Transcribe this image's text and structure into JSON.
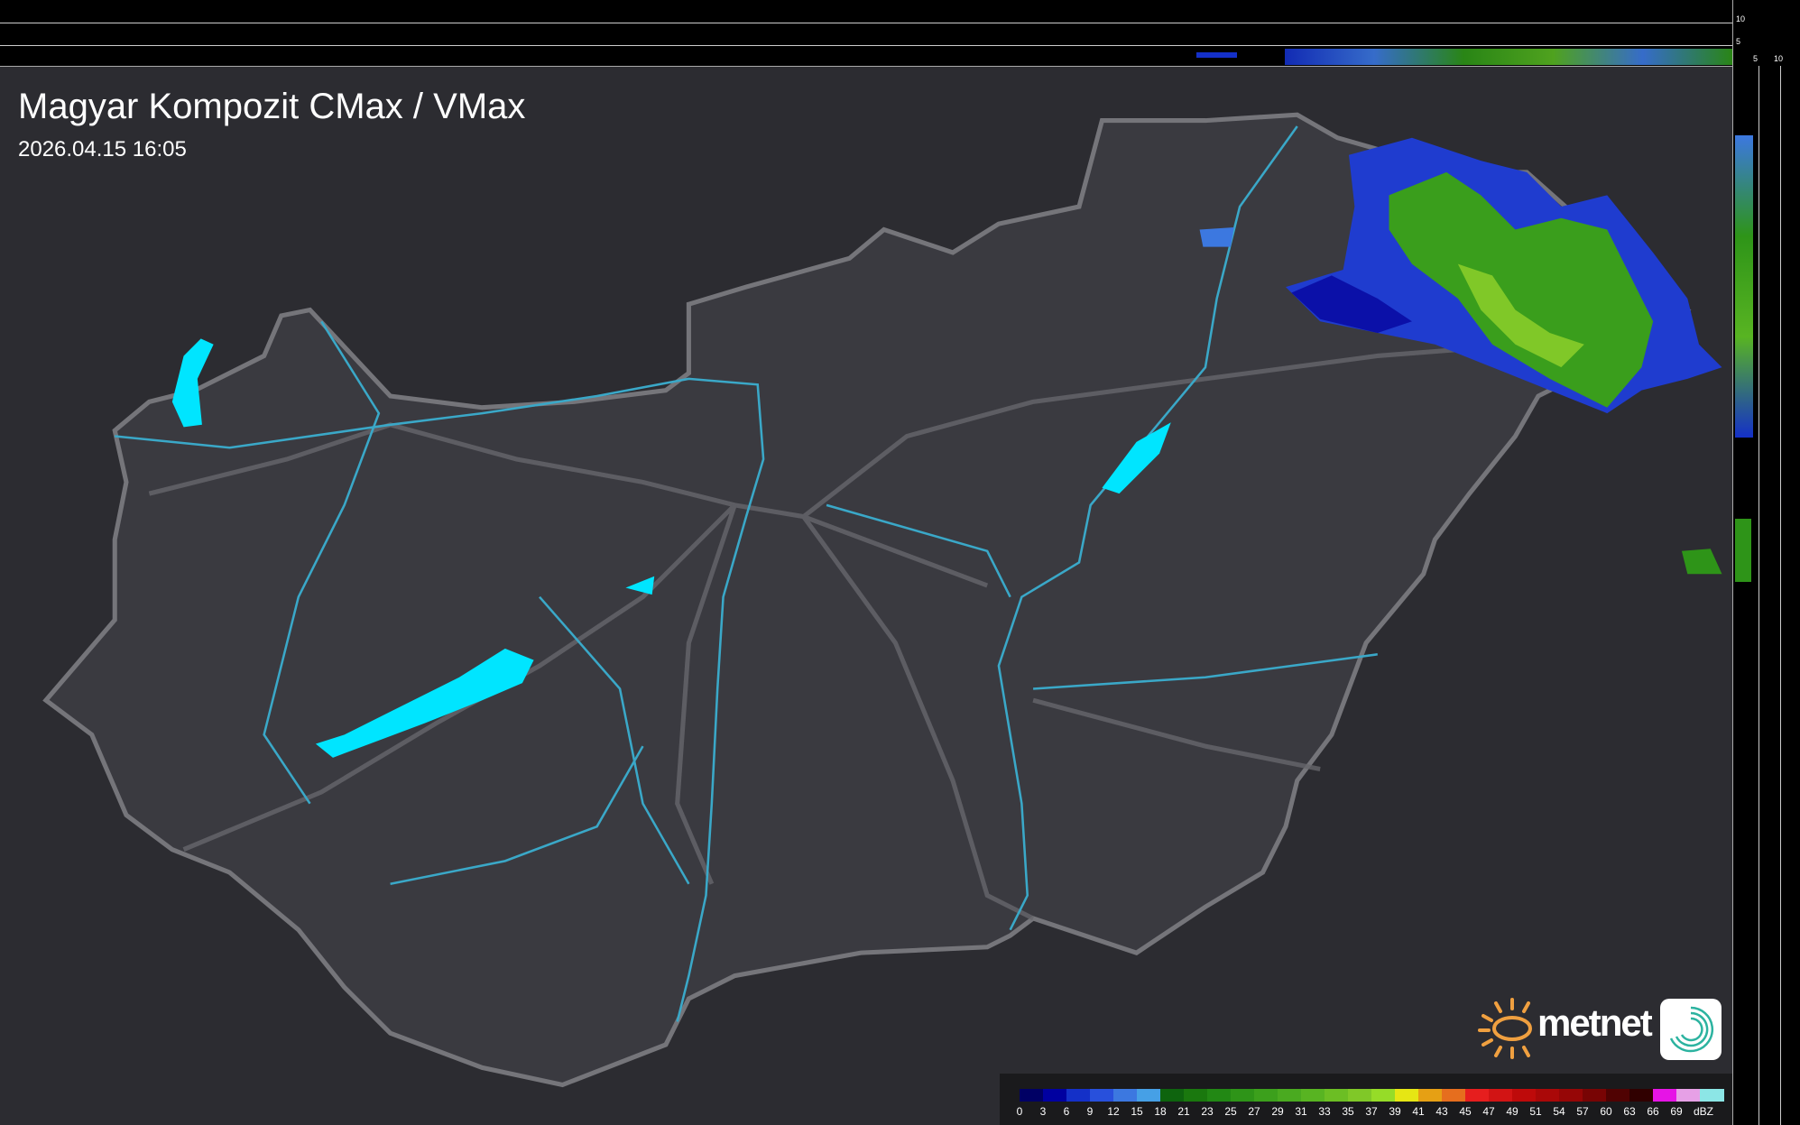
{
  "header": {
    "title": "Magyar Kompozit CMax / VMax",
    "timestamp": "2026.04.15 16:05"
  },
  "top_panel": {
    "ticks": [
      "10",
      "5"
    ]
  },
  "side_panel": {
    "ticks": [
      "5",
      "10"
    ]
  },
  "legend": {
    "unit": "dBZ",
    "labels": [
      "0",
      "3",
      "6",
      "9",
      "12",
      "15",
      "18",
      "21",
      "23",
      "25",
      "27",
      "29",
      "31",
      "33",
      "35",
      "37",
      "39",
      "41",
      "43",
      "45",
      "47",
      "49",
      "51",
      "54",
      "57",
      "60",
      "63",
      "66",
      "69"
    ],
    "colors": [
      "#000064",
      "#0000a0",
      "#1430c8",
      "#2850dc",
      "#3c78e0",
      "#46a0e6",
      "#0e640e",
      "#1a780e",
      "#228814",
      "#2e9418",
      "#3ca01c",
      "#4aaa20",
      "#58b422",
      "#6cbe24",
      "#80c828",
      "#96dc28",
      "#e6e614",
      "#e6a014",
      "#e66e1e",
      "#e61e1e",
      "#d21414",
      "#be0a0a",
      "#aa0808",
      "#960606",
      "#780404",
      "#500202",
      "#300000",
      "#e614e6",
      "#e6a0e6",
      "#8ce6e6"
    ]
  },
  "branding": {
    "logo_text": "metnet",
    "logo_color": "#f0a040"
  },
  "map_colors": {
    "background": "#2c2c31",
    "country": "#3a3a40",
    "border": "#707075",
    "water": "#00e5ff",
    "river": "#3aa8c8"
  }
}
